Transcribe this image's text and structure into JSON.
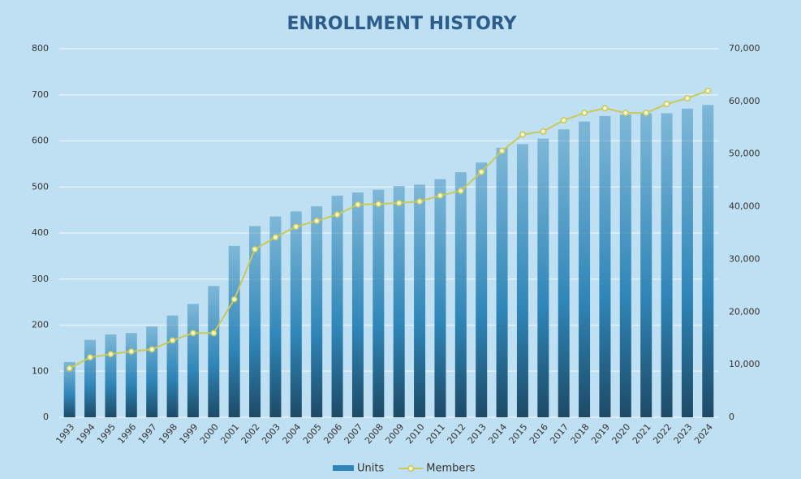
{
  "chart_data": {
    "type": "bar",
    "title": "ENROLLMENT HISTORY",
    "categories": [
      "1993",
      "1994",
      "1995",
      "1996",
      "1997",
      "1998",
      "1999",
      "2000",
      "2001",
      "2002",
      "2003",
      "2004",
      "2005",
      "2006",
      "2007",
      "2008",
      "2009",
      "2010",
      "2011",
      "2012",
      "2013",
      "2014",
      "2015",
      "2016",
      "2017",
      "2018",
      "2019",
      "2020",
      "2021",
      "2022",
      "2023",
      "2024"
    ],
    "series": [
      {
        "name": "Units",
        "type": "bar",
        "axis": "y",
        "color": "#2f86b8",
        "values": [
          120,
          168,
          180,
          183,
          197,
          221,
          246,
          285,
          372,
          415,
          436,
          447,
          458,
          481,
          488,
          494,
          502,
          505,
          517,
          532,
          553,
          585,
          593,
          605,
          625,
          642,
          654,
          657,
          660,
          660,
          670,
          678
        ]
      },
      {
        "name": "Members",
        "type": "line",
        "axis": "y2",
        "color": "#c9c95a",
        "values": [
          9300,
          11400,
          12000,
          12500,
          12900,
          14600,
          16000,
          16000,
          22400,
          31900,
          34200,
          36200,
          37300,
          38500,
          40400,
          40500,
          40700,
          41000,
          42100,
          43000,
          46600,
          50600,
          53700,
          54300,
          56400,
          57800,
          58700,
          57800,
          57800,
          59500,
          60600,
          62000
        ]
      }
    ],
    "ylim": [
      0,
      800
    ],
    "yticks": [
      0,
      100,
      200,
      300,
      400,
      500,
      600,
      700,
      800
    ],
    "y2lim": [
      0,
      70000
    ],
    "y2ticks": [
      0,
      {
        "value": 10000,
        "label": "10,000"
      },
      {
        "value": 20000,
        "label": "20,000"
      },
      {
        "value": 30000,
        "label": "30,000"
      },
      {
        "value": 40000,
        "label": "40,000"
      },
      {
        "value": 50000,
        "label": "50,000"
      },
      {
        "value": 60000,
        "label": "60,000"
      },
      {
        "value": 70000,
        "label": "70,000"
      }
    ],
    "grid": true,
    "legend": "bottom"
  }
}
